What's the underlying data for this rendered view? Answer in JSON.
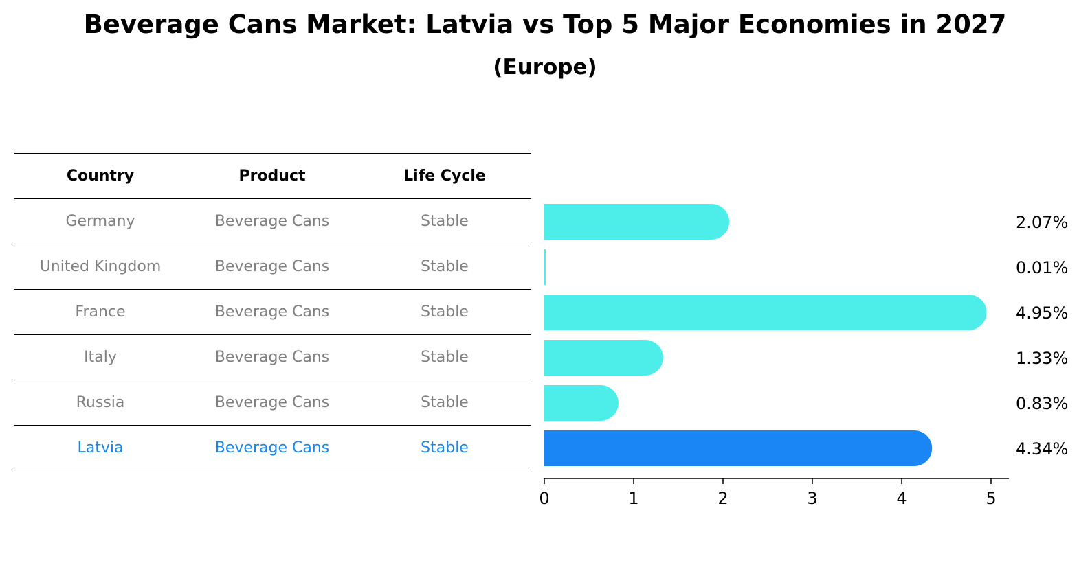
{
  "title": "Beverage Cans Market: Latvia vs Top 5 Major Economies in 2027",
  "subtitle": "(Europe)",
  "table": {
    "headers": [
      "Country",
      "Product",
      "Life Cycle"
    ],
    "rows": [
      [
        "Germany",
        "Beverage Cans",
        "Stable"
      ],
      [
        "United Kingdom",
        "Beverage Cans",
        "Stable"
      ],
      [
        "France",
        "Beverage Cans",
        "Stable"
      ],
      [
        "Italy",
        "Beverage Cans",
        "Stable"
      ],
      [
        "Russia",
        "Beverage Cans",
        "Stable"
      ],
      [
        "Latvia",
        "Beverage Cans",
        "Stable"
      ]
    ]
  },
  "chart_data": {
    "type": "bar",
    "orientation": "horizontal",
    "categories": [
      "Germany",
      "United Kingdom",
      "France",
      "Italy",
      "Russia",
      "Latvia"
    ],
    "values": [
      2.07,
      0.01,
      4.95,
      1.33,
      0.83,
      4.34
    ],
    "value_labels": [
      "2.07%",
      "0.01%",
      "4.95%",
      "1.33%",
      "0.83%",
      "4.34%"
    ],
    "xlim": [
      0,
      5.2
    ],
    "xticks": [
      0,
      1,
      2,
      3,
      4,
      5
    ],
    "highlight": "Latvia",
    "colors": {
      "default": "#4deee9",
      "highlight": "#1a86f5"
    },
    "grid": false
  }
}
